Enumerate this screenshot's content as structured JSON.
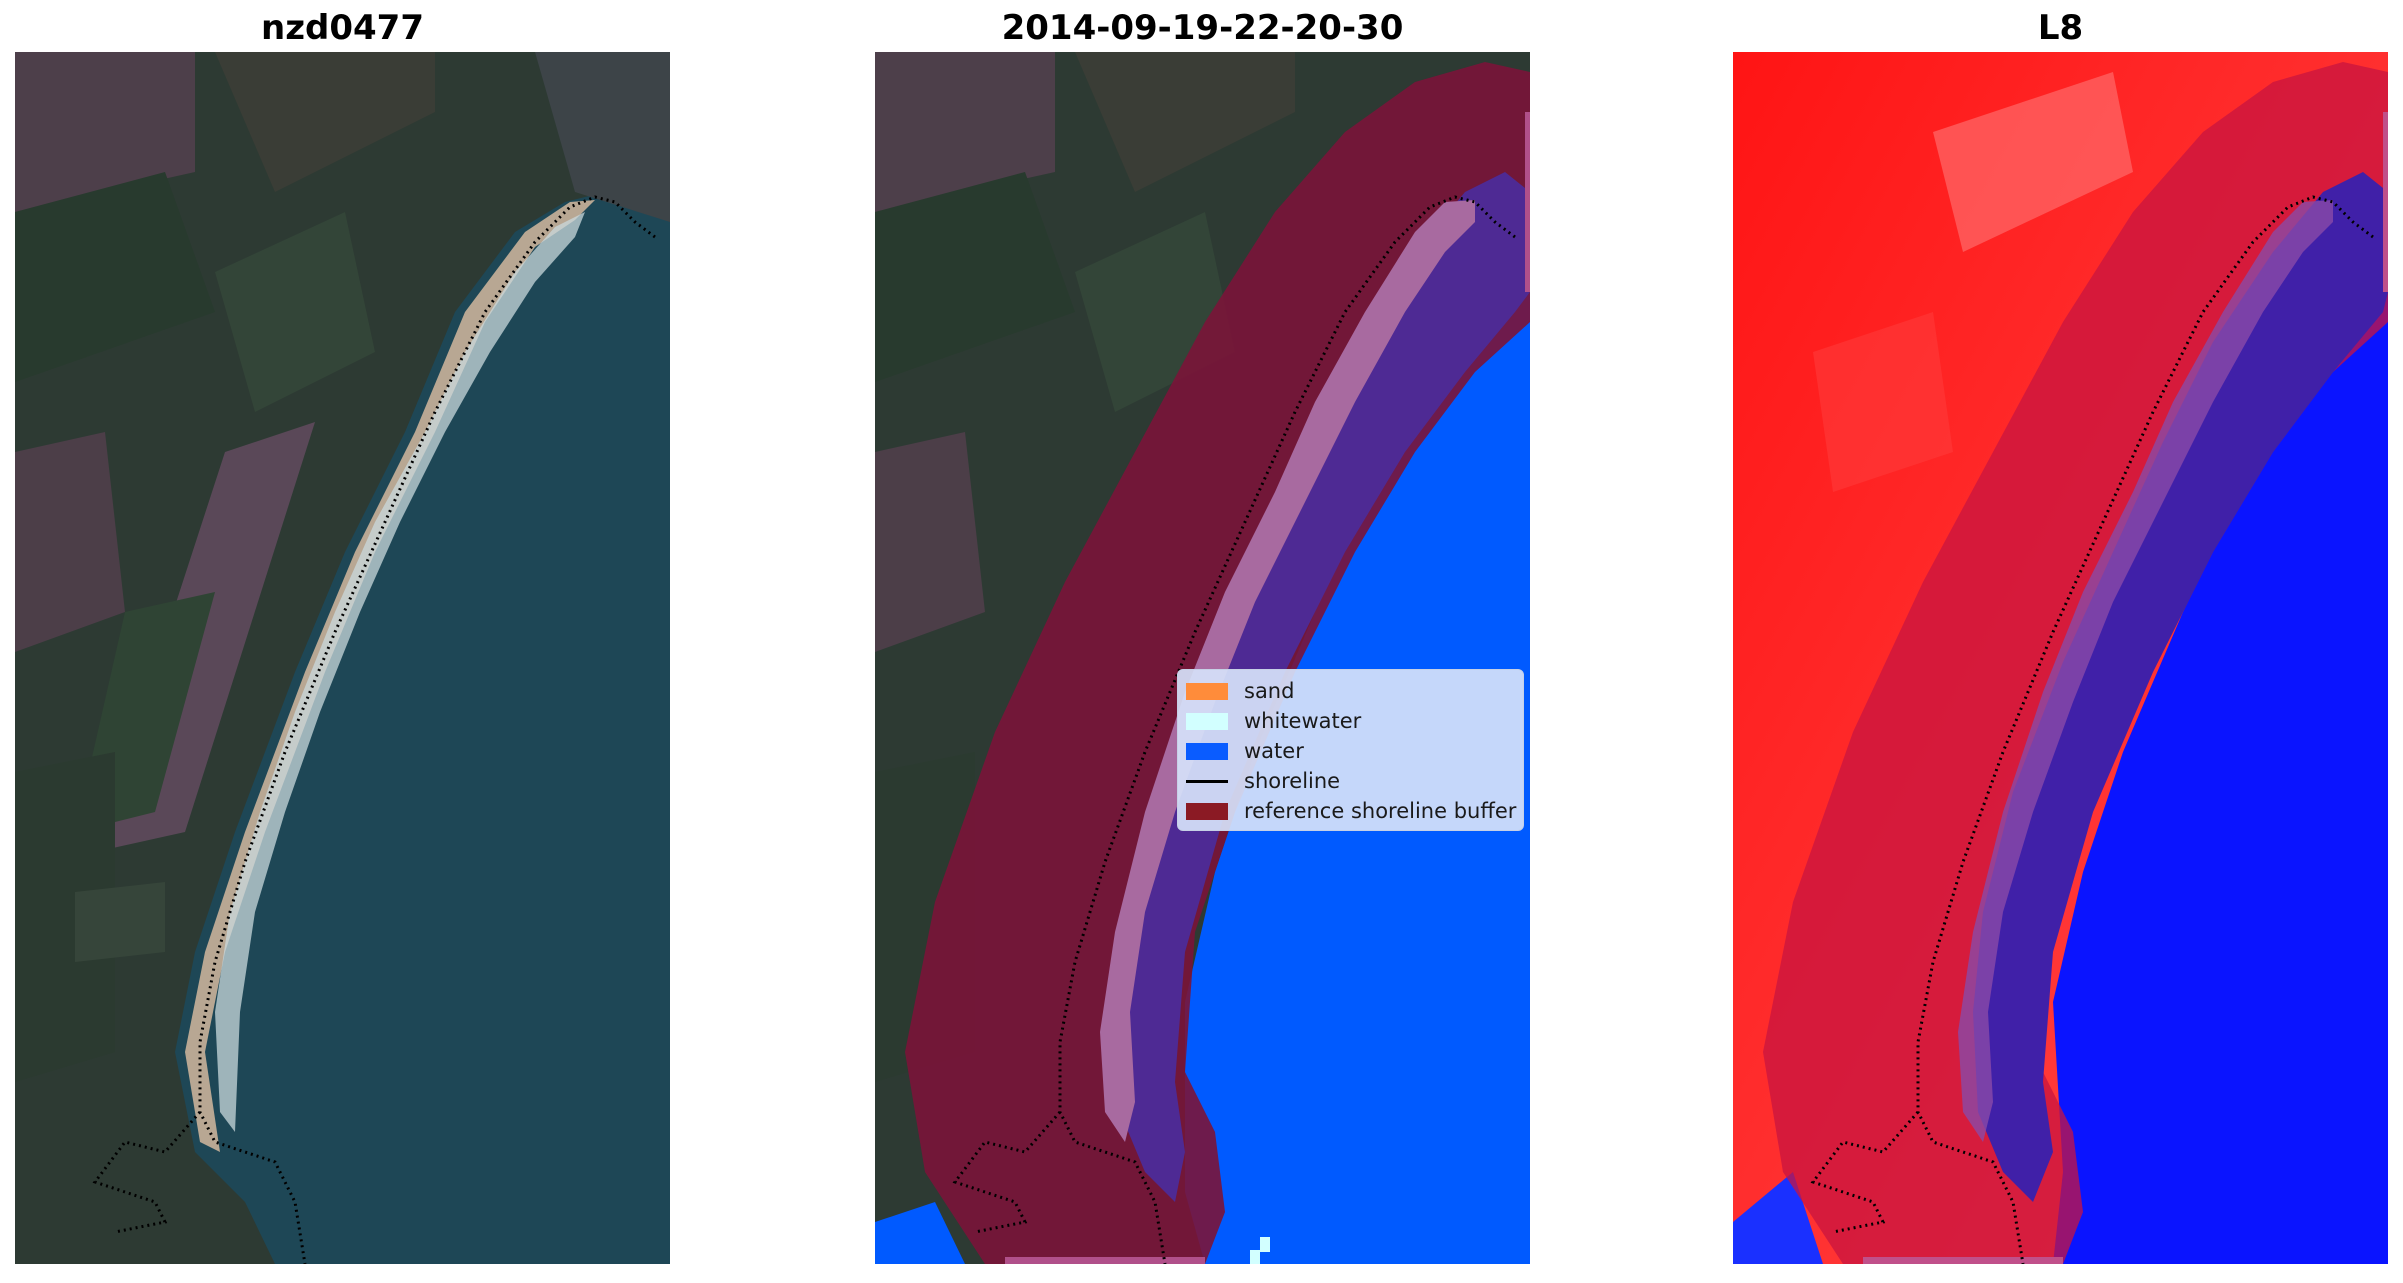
{
  "panels": [
    {
      "title": "nzd0477"
    },
    {
      "title": "2014-09-19-22-20-30"
    },
    {
      "title": "L8"
    }
  ],
  "legend": {
    "items": [
      {
        "label": "sand",
        "color": "#ff8c3a",
        "kind": "patch"
      },
      {
        "label": "whitewater",
        "color": "#d2ffff",
        "kind": "patch"
      },
      {
        "label": "water",
        "color": "#0a5cff",
        "kind": "patch"
      },
      {
        "label": "shoreline",
        "color": "#000000",
        "kind": "line"
      },
      {
        "label": "reference shoreline buffer",
        "color": "#8b1a24",
        "kind": "patch"
      }
    ]
  },
  "colors": {
    "land_dark": "#2f3b34",
    "field_purple": "#5b4b58",
    "sea": "#1d4a57",
    "beach": "#b9a893",
    "buffer": "#7a1438",
    "water_class": "#005aff",
    "nearshore_class": "#4e2a94",
    "sand_class": "#a86aa0",
    "index_land": "#ff2020",
    "index_water": "#0a14ff"
  }
}
